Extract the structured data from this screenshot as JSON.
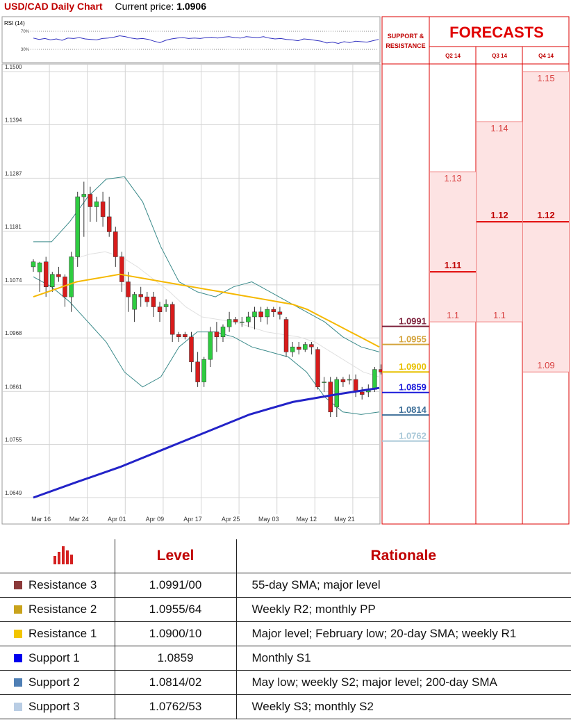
{
  "header": {
    "title": "USD/CAD Daily Chart",
    "current_label": "Current price:",
    "current_value": "1.0906"
  },
  "rsi": {
    "label": "RSI (14)",
    "ticks": [
      "70%",
      "30%"
    ],
    "values": [
      55,
      52,
      54,
      51,
      53,
      50,
      55,
      54,
      56,
      53,
      52,
      51,
      54,
      55,
      57,
      60,
      58,
      55,
      53,
      54,
      52,
      48,
      45,
      50,
      53,
      55,
      56,
      54,
      55,
      54,
      56,
      57,
      55,
      57,
      58,
      56,
      55,
      58,
      57,
      56,
      58,
      55,
      53,
      54,
      52,
      51,
      49,
      53,
      52,
      50,
      48,
      44,
      46,
      43,
      47,
      45,
      48,
      47,
      46,
      49,
      52
    ]
  },
  "sr_panel": {
    "title_line1": "SUPPORT &",
    "title_line2": "RESISTANCE"
  },
  "forecasts": {
    "title": "FORECASTS",
    "quarters": [
      {
        "label": "Q2 14",
        "values": [
          "1.13",
          "1.11",
          "1.1"
        ]
      },
      {
        "label": "Q3 14",
        "values": [
          "1.14",
          "1.12",
          "1.1"
        ]
      },
      {
        "label": "Q4 14",
        "values": [
          "1.15",
          "1.12",
          "1.09"
        ]
      }
    ]
  },
  "levels": [
    {
      "value": "1.0991",
      "price": 1.0991,
      "color": "#7b1f3a"
    },
    {
      "value": "1.0955",
      "price": 1.0955,
      "color": "#d4a33b"
    },
    {
      "value": "1.0900",
      "price": 1.09,
      "color": "#e8c000"
    },
    {
      "value": "1.0859",
      "price": 1.0859,
      "color": "#1a1adb"
    },
    {
      "value": "1.0814",
      "price": 1.0814,
      "color": "#3d6e98"
    },
    {
      "value": "1.0762",
      "price": 1.0762,
      "color": "#a9c8d8"
    }
  ],
  "chart_data": {
    "type": "candlestick",
    "title": "USD/CAD Daily Chart",
    "y_ticks": [
      "1.1500",
      "1.1394",
      "1.1287",
      "1.1181",
      "1.1074",
      "1.0968",
      "1.0861",
      "1.0755",
      "1.0649"
    ],
    "ylim": [
      1.0649,
      1.15
    ],
    "x_labels": [
      {
        "label": "Mar 16",
        "index": 1
      },
      {
        "label": "Mar 24",
        "index": 7
      },
      {
        "label": "Apr 01",
        "index": 13
      },
      {
        "label": "Apr 09",
        "index": 19
      },
      {
        "label": "Apr 17",
        "index": 25
      },
      {
        "label": "Apr 25",
        "index": 31
      },
      {
        "label": "May 03",
        "index": 37
      },
      {
        "label": "May 12",
        "index": 43
      },
      {
        "label": "May 21",
        "index": 49
      }
    ],
    "candles": [
      [
        1.111,
        1.1125,
        1.112,
        1.11
      ],
      [
        1.11,
        1.112,
        1.1118,
        1.106
      ],
      [
        1.112,
        1.113,
        1.107,
        1.105
      ],
      [
        1.107,
        1.11,
        1.1095,
        1.106
      ],
      [
        1.1095,
        1.111,
        1.109,
        1.108
      ],
      [
        1.109,
        1.1095,
        1.105,
        1.103
      ],
      [
        1.105,
        1.114,
        1.113,
        1.102
      ],
      [
        1.113,
        1.126,
        1.125,
        1.111
      ],
      [
        1.125,
        1.128,
        1.1255,
        1.117
      ],
      [
        1.1255,
        1.127,
        1.123,
        1.12
      ],
      [
        1.123,
        1.125,
        1.124,
        1.12
      ],
      [
        1.124,
        1.126,
        1.121,
        1.119
      ],
      [
        1.121,
        1.125,
        1.118,
        1.117
      ],
      [
        1.118,
        1.119,
        1.113,
        1.111
      ],
      [
        1.113,
        1.114,
        1.108,
        1.106
      ],
      [
        1.108,
        1.11,
        1.105,
        1.102
      ],
      [
        1.1025,
        1.106,
        1.1055,
        1.1
      ],
      [
        1.1055,
        1.107,
        1.105,
        1.103
      ],
      [
        1.105,
        1.106,
        1.104,
        1.103
      ],
      [
        1.105,
        1.106,
        1.103,
        1.101
      ],
      [
        1.103,
        1.104,
        1.102,
        1.1
      ],
      [
        1.103,
        1.1045,
        1.1035,
        1.102
      ],
      [
        1.1035,
        1.104,
        1.0975,
        1.096
      ],
      [
        1.0975,
        1.098,
        1.097,
        1.096
      ],
      [
        1.0975,
        1.098,
        1.097,
        1.0965
      ],
      [
        1.097,
        1.098,
        1.092,
        1.09
      ],
      [
        1.092,
        1.094,
        1.088,
        1.087
      ],
      [
        1.088,
        1.093,
        1.0925,
        1.087
      ],
      [
        1.0925,
        1.099,
        1.098,
        1.091
      ],
      [
        1.098,
        1.1,
        1.097,
        1.094
      ],
      [
        1.097,
        1.0995,
        1.099,
        1.096
      ],
      [
        1.099,
        1.102,
        1.1005,
        1.098
      ],
      [
        1.1005,
        1.101,
        1.1,
        1.0995
      ],
      [
        1.1,
        1.101,
        1.1,
        1.099
      ],
      [
        1.1,
        1.102,
        1.101,
        1.099
      ],
      [
        1.101,
        1.103,
        1.102,
        1.0985
      ],
      [
        1.102,
        1.103,
        1.101,
        1.1
      ],
      [
        1.101,
        1.103,
        1.1025,
        1.0995
      ],
      [
        1.1025,
        1.103,
        1.102,
        1.101
      ],
      [
        1.102,
        1.103,
        1.1015,
        1.1005
      ],
      [
        1.1005,
        1.101,
        1.094,
        1.093
      ],
      [
        1.094,
        1.096,
        1.095,
        1.093
      ],
      [
        1.095,
        1.096,
        1.0945,
        1.0935
      ],
      [
        1.0945,
        1.096,
        1.0955,
        1.094
      ],
      [
        1.0955,
        1.096,
        1.095,
        1.0935
      ],
      [
        1.0945,
        1.095,
        1.087,
        1.0865
      ],
      [
        1.088,
        1.089,
        1.088,
        1.086
      ],
      [
        1.088,
        1.089,
        1.082,
        1.081
      ],
      [
        1.083,
        1.089,
        1.0885,
        1.081
      ],
      [
        1.0885,
        1.089,
        1.088,
        1.087
      ],
      [
        1.0885,
        1.0895,
        1.0885,
        1.0875
      ],
      [
        1.0885,
        1.0895,
        1.086,
        1.085
      ],
      [
        1.086,
        1.087,
        1.0855,
        1.0845
      ],
      [
        1.086,
        1.0875,
        1.0865,
        1.085
      ],
      [
        1.0865,
        1.091,
        1.0905,
        1.086
      ],
      [
        1.0905,
        1.0915,
        1.09,
        1.0895
      ]
    ],
    "sma55": [
      1.105,
      1.106,
      1.107,
      1.108,
      1.1085,
      1.109,
      1.1095,
      1.109,
      1.1085,
      1.108,
      1.1075,
      1.107,
      1.1065,
      1.106,
      1.1055,
      1.105,
      1.1045,
      1.104,
      1.1035,
      1.1025,
      1.101,
      1.0995,
      1.098,
      1.0965,
      1.095
    ],
    "sma200": [
      1.0649,
      1.068,
      1.071,
      1.0745,
      1.078,
      1.0815,
      1.084,
      1.0855,
      1.0868
    ],
    "bb_upper": [
      1.116,
      1.116,
      1.12,
      1.125,
      1.1285,
      1.129,
      1.124,
      1.115,
      1.108,
      1.106,
      1.105,
      1.107,
      1.108,
      1.106,
      1.104,
      1.102,
      1.1,
      1.097,
      1.095,
      1.094
    ],
    "bb_lower": [
      1.109,
      1.107,
      1.104,
      1.1,
      1.096,
      1.09,
      1.087,
      1.089,
      1.095,
      1.098,
      1.098,
      1.097,
      1.095,
      1.094,
      1.093,
      1.09,
      1.085,
      1.082,
      1.0815,
      1.082
    ],
    "bb_mid": [
      1.1125,
      1.1135,
      1.114,
      1.113,
      1.111,
      1.1085,
      1.106,
      1.103,
      1.101,
      1.1005,
      1.1,
      1.099,
      1.098,
      1.0975,
      1.097,
      1.096,
      1.094,
      1.092,
      1.09,
      1.089
    ]
  },
  "table": {
    "headers": [
      "",
      "Level",
      "Rationale"
    ],
    "rows": [
      {
        "name": "Resistance 3",
        "level": "1.0991/00",
        "rationale": "55-day SMA; major level",
        "color": "#8b3a3a"
      },
      {
        "name": "Resistance 2",
        "level": "1.0955/64",
        "rationale": "Weekly R2; monthly PP",
        "color": "#c9a31c"
      },
      {
        "name": "Resistance 1",
        "level": "1.0900/10",
        "rationale": "Major level; February low; 20-day SMA; weekly R1",
        "color": "#f2c500"
      },
      {
        "name": "Support 1",
        "level": "1.0859",
        "rationale": "Monthly S1",
        "color": "#0000ee"
      },
      {
        "name": "Support 2",
        "level": "1.0814/02",
        "rationale": "May low; weekly S2; major level; 200-day SMA",
        "color": "#4f7fb5"
      },
      {
        "name": "Support 3",
        "level": "1.0762/53",
        "rationale": "Weekly S3; monthly S2",
        "color": "#b9cde4"
      }
    ]
  }
}
